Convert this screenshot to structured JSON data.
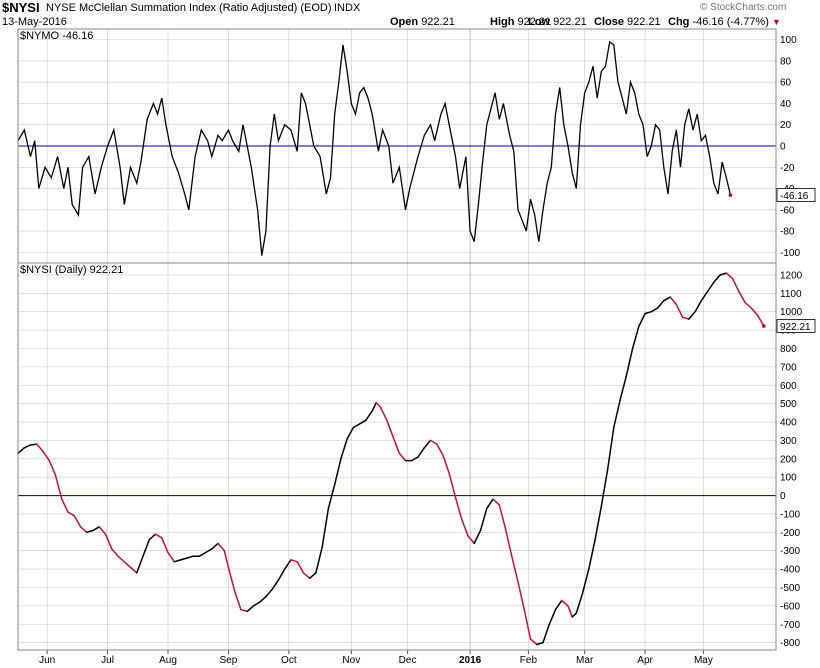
{
  "header": {
    "symbol": "$NYSI",
    "name": "NYSE McClellan Summation Index (Ratio Adjusted) (EOD)",
    "exchange": "INDX",
    "date": "13-May-2016",
    "watermark": "© StockCharts.com",
    "ohlc": [
      {
        "label": "Open",
        "value": "922.21"
      },
      {
        "label": "High",
        "value": "922.21"
      },
      {
        "label": "Low",
        "value": "922.21"
      },
      {
        "label": "Close",
        "value": "922.21"
      },
      {
        "label": "Chg",
        "value": "-46.16 (-4.77%)"
      }
    ],
    "change_marker": "▼"
  },
  "colors": {
    "line": "#000000",
    "falling": "#c8103c",
    "zero_line": "#000080",
    "grid": "#cccccc",
    "marker": "#c0004a"
  },
  "chart_data": [
    {
      "type": "line",
      "series_label": "$NYMO -46.16",
      "last_value": "-46.16",
      "ylim": [
        -110,
        110
      ],
      "yticks": [
        100,
        80,
        60,
        40,
        20,
        0,
        -20,
        -40,
        -60,
        -80,
        -100
      ],
      "zero_line": 0,
      "points": [
        [
          0,
          5
        ],
        [
          3,
          15
        ],
        [
          6,
          -10
        ],
        [
          8,
          5
        ],
        [
          10,
          -40
        ],
        [
          13,
          -20
        ],
        [
          16,
          -30
        ],
        [
          19,
          -10
        ],
        [
          22,
          -40
        ],
        [
          24,
          -20
        ],
        [
          26,
          -55
        ],
        [
          29,
          -65
        ],
        [
          31,
          -20
        ],
        [
          34,
          -10
        ],
        [
          37,
          -45
        ],
        [
          40,
          -20
        ],
        [
          43,
          0
        ],
        [
          46,
          15
        ],
        [
          49,
          -20
        ],
        [
          51,
          -55
        ],
        [
          54,
          -20
        ],
        [
          57,
          -35
        ],
        [
          59,
          -15
        ],
        [
          62,
          25
        ],
        [
          65,
          40
        ],
        [
          67,
          30
        ],
        [
          69,
          45
        ],
        [
          71,
          20
        ],
        [
          74,
          -10
        ],
        [
          77,
          -25
        ],
        [
          80,
          -45
        ],
        [
          82,
          -60
        ],
        [
          85,
          -10
        ],
        [
          88,
          15
        ],
        [
          91,
          5
        ],
        [
          93,
          -10
        ],
        [
          96,
          10
        ],
        [
          98,
          5
        ],
        [
          101,
          15
        ],
        [
          103,
          5
        ],
        [
          106,
          -5
        ],
        [
          108,
          20
        ],
        [
          110,
          0
        ],
        [
          112,
          -20
        ],
        [
          115,
          -60
        ],
        [
          117,
          -103
        ],
        [
          119,
          -80
        ],
        [
          121,
          0
        ],
        [
          123,
          30
        ],
        [
          125,
          5
        ],
        [
          128,
          20
        ],
        [
          131,
          15
        ],
        [
          134,
          -5
        ],
        [
          136,
          50
        ],
        [
          138,
          40
        ],
        [
          140,
          20
        ],
        [
          142,
          0
        ],
        [
          145,
          -10
        ],
        [
          148,
          -45
        ],
        [
          150,
          -30
        ],
        [
          152,
          30
        ],
        [
          154,
          60
        ],
        [
          156,
          95
        ],
        [
          158,
          70
        ],
        [
          160,
          40
        ],
        [
          162,
          30
        ],
        [
          164,
          50
        ],
        [
          166,
          55
        ],
        [
          168,
          45
        ],
        [
          170,
          30
        ],
        [
          173,
          -5
        ],
        [
          175,
          15
        ],
        [
          178,
          0
        ],
        [
          180,
          -35
        ],
        [
          183,
          -20
        ],
        [
          186,
          -60
        ],
        [
          188,
          -40
        ],
        [
          190,
          -25
        ],
        [
          192,
          -10
        ],
        [
          195,
          10
        ],
        [
          198,
          20
        ],
        [
          200,
          5
        ],
        [
          203,
          30
        ],
        [
          205,
          40
        ],
        [
          207,
          20
        ],
        [
          210,
          -10
        ],
        [
          212,
          -40
        ],
        [
          215,
          -10
        ],
        [
          217,
          -80
        ],
        [
          219,
          -90
        ],
        [
          221,
          -55
        ],
        [
          223,
          -15
        ],
        [
          225,
          20
        ],
        [
          227,
          35
        ],
        [
          229,
          50
        ],
        [
          231,
          25
        ],
        [
          233,
          40
        ],
        [
          236,
          10
        ],
        [
          238,
          -5
        ],
        [
          240,
          -60
        ],
        [
          242,
          -70
        ],
        [
          244,
          -80
        ],
        [
          246,
          -50
        ],
        [
          248,
          -65
        ],
        [
          250,
          -90
        ],
        [
          252,
          -60
        ],
        [
          254,
          -35
        ],
        [
          256,
          -20
        ],
        [
          258,
          30
        ],
        [
          260,
          55
        ],
        [
          262,
          20
        ],
        [
          264,
          0
        ],
        [
          266,
          -25
        ],
        [
          268,
          -40
        ],
        [
          270,
          20
        ],
        [
          272,
          50
        ],
        [
          274,
          60
        ],
        [
          276,
          75
        ],
        [
          278,
          45
        ],
        [
          280,
          70
        ],
        [
          282,
          75
        ],
        [
          284,
          98
        ],
        [
          286,
          95
        ],
        [
          288,
          60
        ],
        [
          290,
          45
        ],
        [
          292,
          30
        ],
        [
          294,
          60
        ],
        [
          296,
          50
        ],
        [
          298,
          30
        ],
        [
          300,
          20
        ],
        [
          302,
          -10
        ],
        [
          304,
          0
        ],
        [
          306,
          20
        ],
        [
          308,
          15
        ],
        [
          310,
          -20
        ],
        [
          312,
          -45
        ],
        [
          314,
          -5
        ],
        [
          316,
          15
        ],
        [
          318,
          -20
        ],
        [
          320,
          20
        ],
        [
          322,
          35
        ],
        [
          324,
          15
        ],
        [
          326,
          30
        ],
        [
          328,
          5
        ],
        [
          330,
          10
        ],
        [
          332,
          -10
        ],
        [
          334,
          -35
        ],
        [
          336,
          -45
        ],
        [
          338,
          -15
        ],
        [
          340,
          -30
        ],
        [
          342,
          -46.16
        ]
      ]
    },
    {
      "type": "line",
      "series_label": "$NYSI (Daily) 922.21",
      "last_value": "922.21",
      "ylim": [
        -840,
        1265
      ],
      "yticks": [
        1200,
        1100,
        1000,
        900,
        800,
        700,
        600,
        500,
        400,
        300,
        200,
        100,
        0,
        -100,
        -200,
        -300,
        -400,
        -500,
        -600,
        -700,
        -800
      ],
      "zero_line": 0,
      "x_tick_labels": [
        {
          "x": 14,
          "label": "Jun"
        },
        {
          "x": 43,
          "label": "Jul"
        },
        {
          "x": 72,
          "label": "Aug"
        },
        {
          "x": 101,
          "label": "Sep"
        },
        {
          "x": 130,
          "label": "Oct"
        },
        {
          "x": 160,
          "label": "Nov"
        },
        {
          "x": 187,
          "label": "Dec"
        },
        {
          "x": 217,
          "label": "2016"
        },
        {
          "x": 245,
          "label": "Feb"
        },
        {
          "x": 272,
          "label": "Mar"
        },
        {
          "x": 301,
          "label": "Apr"
        },
        {
          "x": 329,
          "label": "May"
        }
      ],
      "points": [
        [
          0,
          230
        ],
        [
          3,
          260
        ],
        [
          6,
          275
        ],
        [
          9,
          280
        ],
        [
          12,
          240
        ],
        [
          15,
          190
        ],
        [
          18,
          110
        ],
        [
          21,
          -20
        ],
        [
          24,
          -90
        ],
        [
          27,
          -110
        ],
        [
          30,
          -170
        ],
        [
          33,
          -200
        ],
        [
          36,
          -190
        ],
        [
          39,
          -170
        ],
        [
          42,
          -210
        ],
        [
          45,
          -290
        ],
        [
          48,
          -330
        ],
        [
          51,
          -360
        ],
        [
          54,
          -390
        ],
        [
          57,
          -420
        ],
        [
          60,
          -330
        ],
        [
          63,
          -240
        ],
        [
          66,
          -210
        ],
        [
          69,
          -230
        ],
        [
          72,
          -310
        ],
        [
          75,
          -360
        ],
        [
          78,
          -350
        ],
        [
          81,
          -340
        ],
        [
          84,
          -330
        ],
        [
          87,
          -330
        ],
        [
          90,
          -310
        ],
        [
          93,
          -290
        ],
        [
          96,
          -260
        ],
        [
          99,
          -300
        ],
        [
          101,
          -390
        ],
        [
          104,
          -520
        ],
        [
          107,
          -620
        ],
        [
          110,
          -630
        ],
        [
          113,
          -600
        ],
        [
          116,
          -580
        ],
        [
          119,
          -550
        ],
        [
          122,
          -510
        ],
        [
          125,
          -460
        ],
        [
          128,
          -400
        ],
        [
          131,
          -350
        ],
        [
          134,
          -360
        ],
        [
          137,
          -420
        ],
        [
          140,
          -450
        ],
        [
          143,
          -420
        ],
        [
          146,
          -280
        ],
        [
          149,
          -70
        ],
        [
          152,
          60
        ],
        [
          155,
          200
        ],
        [
          158,
          310
        ],
        [
          161,
          370
        ],
        [
          164,
          390
        ],
        [
          167,
          410
        ],
        [
          170,
          460
        ],
        [
          172,
          505
        ],
        [
          174,
          480
        ],
        [
          177,
          410
        ],
        [
          180,
          320
        ],
        [
          183,
          230
        ],
        [
          186,
          190
        ],
        [
          189,
          190
        ],
        [
          192,
          210
        ],
        [
          195,
          260
        ],
        [
          198,
          300
        ],
        [
          201,
          280
        ],
        [
          204,
          220
        ],
        [
          207,
          120
        ],
        [
          210,
          -10
        ],
        [
          213,
          -130
        ],
        [
          216,
          -220
        ],
        [
          219,
          -260
        ],
        [
          222,
          -190
        ],
        [
          225,
          -70
        ],
        [
          228,
          -20
        ],
        [
          231,
          -50
        ],
        [
          234,
          -180
        ],
        [
          237,
          -330
        ],
        [
          240,
          -470
        ],
        [
          243,
          -620
        ],
        [
          246,
          -780
        ],
        [
          249,
          -810
        ],
        [
          252,
          -800
        ],
        [
          255,
          -700
        ],
        [
          258,
          -620
        ],
        [
          261,
          -570
        ],
        [
          264,
          -600
        ],
        [
          266,
          -660
        ],
        [
          268,
          -640
        ],
        [
          271,
          -530
        ],
        [
          274,
          -400
        ],
        [
          277,
          -240
        ],
        [
          280,
          -60
        ],
        [
          283,
          140
        ],
        [
          286,
          370
        ],
        [
          289,
          520
        ],
        [
          292,
          650
        ],
        [
          295,
          800
        ],
        [
          298,
          920
        ],
        [
          301,
          990
        ],
        [
          304,
          1000
        ],
        [
          307,
          1020
        ],
        [
          310,
          1060
        ],
        [
          313,
          1080
        ],
        [
          316,
          1040
        ],
        [
          319,
          970
        ],
        [
          322,
          960
        ],
        [
          325,
          1000
        ],
        [
          328,
          1060
        ],
        [
          331,
          1110
        ],
        [
          334,
          1160
        ],
        [
          337,
          1200
        ],
        [
          340,
          1210
        ],
        [
          343,
          1180
        ],
        [
          346,
          1110
        ],
        [
          349,
          1050
        ],
        [
          352,
          1020
        ],
        [
          355,
          980
        ],
        [
          358,
          922.21
        ]
      ]
    }
  ]
}
